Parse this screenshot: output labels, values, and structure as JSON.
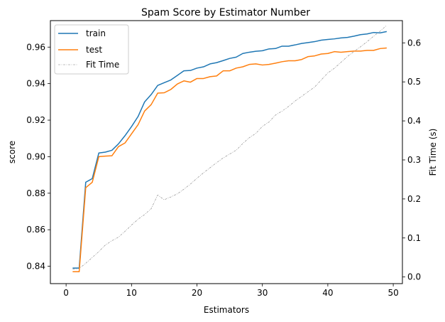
{
  "chart_data": {
    "type": "line",
    "title": "Spam Score by Estimator Number",
    "xlabel": "Estimators",
    "ylabel": "score",
    "y2label": "Fit Time (s)",
    "xlim": [
      -2.4,
      51.4
    ],
    "ylim": [
      0.8305,
      0.9745
    ],
    "y2lim": [
      -0.017,
      0.657
    ],
    "x_ticks": [
      0,
      10,
      20,
      30,
      40,
      50
    ],
    "y_ticks": [
      0.84,
      0.86,
      0.88,
      0.9,
      0.92,
      0.94,
      0.96
    ],
    "y_tick_labels": [
      "0.84",
      "0.86",
      "0.88",
      "0.90",
      "0.92",
      "0.94",
      "0.96"
    ],
    "y2_ticks": [
      0.0,
      0.1,
      0.2,
      0.3,
      0.4,
      0.5,
      0.6
    ],
    "y2_tick_labels": [
      "0.0",
      "0.1",
      "0.2",
      "0.3",
      "0.4",
      "0.5",
      "0.6"
    ],
    "grid": false,
    "legend_position": "top-left",
    "x": [
      1,
      2,
      3,
      4,
      5,
      6,
      7,
      8,
      9,
      10,
      11,
      12,
      13,
      14,
      15,
      16,
      17,
      18,
      19,
      20,
      21,
      22,
      23,
      24,
      25,
      26,
      27,
      28,
      29,
      30,
      31,
      32,
      33,
      34,
      35,
      36,
      37,
      38,
      39,
      40,
      41,
      42,
      43,
      44,
      45,
      46,
      47,
      48,
      49
    ],
    "series": [
      {
        "name": "train",
        "axis": "left",
        "color": "#1f77b4",
        "style": "solid",
        "values": [
          0.839,
          0.839,
          0.886,
          0.888,
          0.902,
          0.9025,
          0.9035,
          0.907,
          0.9115,
          0.9165,
          0.922,
          0.93,
          0.934,
          0.939,
          0.9405,
          0.942,
          0.9445,
          0.947,
          0.9472,
          0.9485,
          0.9492,
          0.9508,
          0.9515,
          0.9526,
          0.9538,
          0.9545,
          0.9565,
          0.9572,
          0.9577,
          0.958,
          0.959,
          0.9592,
          0.9605,
          0.9605,
          0.9612,
          0.962,
          0.9625,
          0.963,
          0.9638,
          0.9642,
          0.9645,
          0.965,
          0.9653,
          0.966,
          0.9668,
          0.9672,
          0.968,
          0.9678,
          0.9685
        ]
      },
      {
        "name": "test",
        "axis": "left",
        "color": "#ff7f0e",
        "style": "solid",
        "values": [
          0.837,
          0.837,
          0.883,
          0.886,
          0.9,
          0.9003,
          0.9005,
          0.9055,
          0.9075,
          0.9125,
          0.9175,
          0.925,
          0.9285,
          0.9348,
          0.935,
          0.9368,
          0.9398,
          0.9415,
          0.9408,
          0.9428,
          0.9428,
          0.9438,
          0.9442,
          0.947,
          0.947,
          0.9485,
          0.9492,
          0.9505,
          0.9508,
          0.9502,
          0.9505,
          0.9512,
          0.952,
          0.9525,
          0.9525,
          0.9532,
          0.9548,
          0.9552,
          0.9562,
          0.9565,
          0.9575,
          0.9572,
          0.9575,
          0.9578,
          0.9578,
          0.9582,
          0.9582,
          0.9592,
          0.9595
        ]
      },
      {
        "name": "Fit Time",
        "axis": "right",
        "color": "#808080",
        "style": "dash-dot",
        "values": [
          0.02,
          0.022,
          0.035,
          0.05,
          0.065,
          0.082,
          0.093,
          0.102,
          0.117,
          0.133,
          0.148,
          0.16,
          0.175,
          0.21,
          0.198,
          0.205,
          0.213,
          0.225,
          0.238,
          0.253,
          0.267,
          0.28,
          0.293,
          0.305,
          0.315,
          0.325,
          0.342,
          0.357,
          0.368,
          0.386,
          0.397,
          0.415,
          0.425,
          0.437,
          0.451,
          0.463,
          0.475,
          0.487,
          0.505,
          0.523,
          0.535,
          0.55,
          0.565,
          0.578,
          0.59,
          0.603,
          0.617,
          0.63,
          0.645
        ]
      }
    ]
  }
}
